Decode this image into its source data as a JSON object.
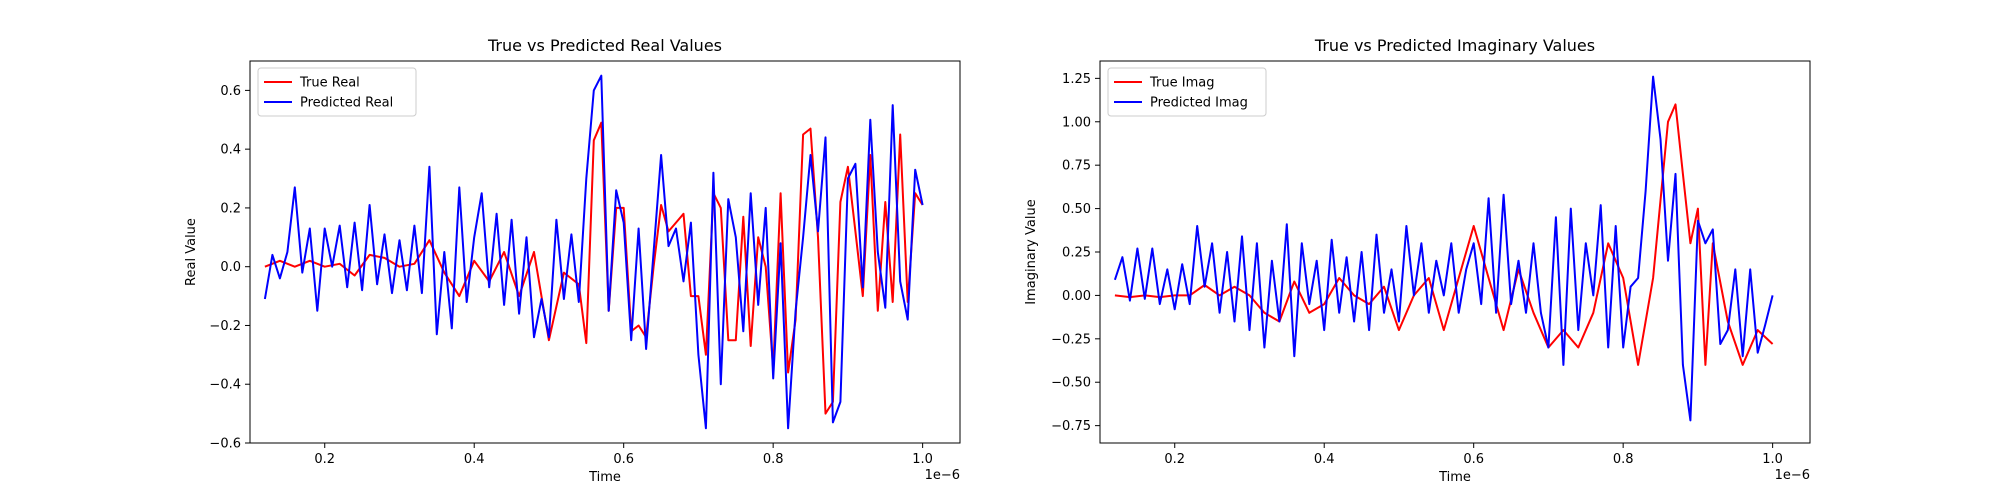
{
  "chart_data": [
    {
      "type": "line",
      "title": "True vs Predicted Real Values",
      "xlabel": "Time",
      "ylabel": "Real Value",
      "x_offset_label": "1e−6",
      "xlim": [
        0.1,
        1.05
      ],
      "ylim": [
        -0.6,
        0.7
      ],
      "x_ticks": [
        0.2,
        0.4,
        0.6,
        0.8,
        1.0
      ],
      "x_tick_labels": [
        "0.2",
        "0.4",
        "0.6",
        "0.8",
        "1.0"
      ],
      "y_ticks": [
        -0.6,
        -0.4,
        -0.2,
        0.0,
        0.2,
        0.4,
        0.6
      ],
      "y_tick_labels": [
        "−0.6",
        "−0.4",
        "−0.2",
        "0.0",
        "0.2",
        "0.4",
        "0.6"
      ],
      "grid": false,
      "legend_position": "top-left",
      "series": [
        {
          "name": "True Real",
          "color": "#ff0000",
          "x": [
            0.12,
            0.14,
            0.16,
            0.18,
            0.2,
            0.22,
            0.24,
            0.26,
            0.28,
            0.3,
            0.32,
            0.34,
            0.36,
            0.38,
            0.4,
            0.42,
            0.44,
            0.46,
            0.48,
            0.5,
            0.52,
            0.54,
            0.55,
            0.56,
            0.57,
            0.58,
            0.59,
            0.6,
            0.61,
            0.62,
            0.63,
            0.64,
            0.65,
            0.66,
            0.67,
            0.68,
            0.69,
            0.7,
            0.71,
            0.72,
            0.73,
            0.74,
            0.75,
            0.76,
            0.77,
            0.78,
            0.79,
            0.8,
            0.81,
            0.82,
            0.83,
            0.84,
            0.85,
            0.86,
            0.87,
            0.88,
            0.89,
            0.9,
            0.91,
            0.92,
            0.93,
            0.94,
            0.95,
            0.96,
            0.97,
            0.98,
            0.99,
            1.0
          ],
          "y": [
            0.0,
            0.02,
            0.0,
            0.02,
            0.0,
            0.01,
            -0.03,
            0.04,
            0.03,
            0.0,
            0.01,
            0.09,
            -0.02,
            -0.1,
            0.02,
            -0.05,
            0.05,
            -0.1,
            0.05,
            -0.25,
            -0.02,
            -0.06,
            -0.26,
            0.43,
            0.49,
            -0.15,
            0.2,
            0.2,
            -0.22,
            -0.2,
            -0.24,
            0.0,
            0.21,
            0.12,
            0.15,
            0.18,
            -0.1,
            -0.1,
            -0.3,
            0.25,
            0.2,
            -0.25,
            -0.25,
            0.17,
            -0.27,
            0.1,
            0.0,
            -0.35,
            0.25,
            -0.36,
            -0.18,
            0.45,
            0.47,
            0.1,
            -0.5,
            -0.46,
            0.22,
            0.34,
            0.12,
            -0.1,
            0.38,
            -0.15,
            0.22,
            -0.12,
            0.45,
            -0.12,
            0.25,
            0.21
          ]
        },
        {
          "name": "Predicted Real",
          "color": "#0000ff",
          "x": [
            0.12,
            0.13,
            0.14,
            0.15,
            0.16,
            0.17,
            0.18,
            0.19,
            0.2,
            0.21,
            0.22,
            0.23,
            0.24,
            0.25,
            0.26,
            0.27,
            0.28,
            0.29,
            0.3,
            0.31,
            0.32,
            0.33,
            0.34,
            0.35,
            0.36,
            0.37,
            0.38,
            0.39,
            0.4,
            0.41,
            0.42,
            0.43,
            0.44,
            0.45,
            0.46,
            0.47,
            0.48,
            0.49,
            0.5,
            0.51,
            0.52,
            0.53,
            0.54,
            0.55,
            0.56,
            0.57,
            0.58,
            0.59,
            0.6,
            0.61,
            0.62,
            0.63,
            0.64,
            0.65,
            0.66,
            0.67,
            0.68,
            0.69,
            0.7,
            0.71,
            0.72,
            0.73,
            0.74,
            0.75,
            0.76,
            0.77,
            0.78,
            0.79,
            0.8,
            0.81,
            0.82,
            0.83,
            0.84,
            0.85,
            0.86,
            0.87,
            0.88,
            0.89,
            0.9,
            0.91,
            0.92,
            0.93,
            0.94,
            0.95,
            0.96,
            0.97,
            0.98,
            0.99,
            1.0
          ],
          "y": [
            -0.11,
            0.04,
            -0.04,
            0.05,
            0.27,
            -0.02,
            0.13,
            -0.15,
            0.13,
            0.0,
            0.14,
            -0.07,
            0.15,
            -0.08,
            0.21,
            -0.06,
            0.11,
            -0.09,
            0.09,
            -0.08,
            0.14,
            -0.09,
            0.34,
            -0.23,
            0.05,
            -0.21,
            0.27,
            -0.12,
            0.1,
            0.25,
            -0.07,
            0.18,
            -0.13,
            0.16,
            -0.16,
            0.1,
            -0.24,
            -0.11,
            -0.24,
            0.16,
            -0.11,
            0.11,
            -0.12,
            0.3,
            0.6,
            0.65,
            -0.15,
            0.26,
            0.15,
            -0.25,
            0.13,
            -0.28,
            0.05,
            0.38,
            0.07,
            0.13,
            -0.05,
            0.15,
            -0.3,
            -0.55,
            0.32,
            -0.4,
            0.23,
            0.1,
            -0.22,
            0.25,
            -0.13,
            0.2,
            -0.38,
            0.08,
            -0.55,
            -0.15,
            0.1,
            0.38,
            0.12,
            0.44,
            -0.53,
            -0.46,
            0.3,
            0.35,
            -0.07,
            0.5,
            0.05,
            -0.14,
            0.55,
            -0.05,
            -0.18,
            0.33,
            0.21
          ]
        }
      ]
    },
    {
      "type": "line",
      "title": "True vs Predicted Imaginary Values",
      "xlabel": "Time",
      "ylabel": "Imaginary Value",
      "x_offset_label": "1e−6",
      "xlim": [
        0.1,
        1.05
      ],
      "ylim": [
        -0.85,
        1.35
      ],
      "x_ticks": [
        0.2,
        0.4,
        0.6,
        0.8,
        1.0
      ],
      "x_tick_labels": [
        "0.2",
        "0.4",
        "0.6",
        "0.8",
        "1.0"
      ],
      "y_ticks": [
        -0.75,
        -0.5,
        -0.25,
        0.0,
        0.25,
        0.5,
        0.75,
        1.0,
        1.25
      ],
      "y_tick_labels": [
        "−0.75",
        "−0.50",
        "−0.25",
        "0.00",
        "0.25",
        "0.50",
        "0.75",
        "1.00",
        "1.25"
      ],
      "grid": false,
      "legend_position": "top-left",
      "series": [
        {
          "name": "True Imag",
          "color": "#ff0000",
          "x": [
            0.12,
            0.14,
            0.16,
            0.18,
            0.2,
            0.22,
            0.24,
            0.26,
            0.28,
            0.3,
            0.32,
            0.34,
            0.36,
            0.38,
            0.4,
            0.42,
            0.44,
            0.46,
            0.48,
            0.5,
            0.52,
            0.54,
            0.56,
            0.58,
            0.6,
            0.62,
            0.64,
            0.66,
            0.68,
            0.7,
            0.72,
            0.74,
            0.76,
            0.78,
            0.8,
            0.82,
            0.84,
            0.86,
            0.87,
            0.88,
            0.89,
            0.9,
            0.91,
            0.92,
            0.94,
            0.96,
            0.98,
            1.0
          ],
          "y": [
            0.0,
            -0.01,
            0.0,
            -0.01,
            0.0,
            0.0,
            0.06,
            0.0,
            0.05,
            0.0,
            -0.1,
            -0.15,
            0.08,
            -0.1,
            -0.05,
            0.1,
            0.0,
            -0.05,
            0.05,
            -0.2,
            0.0,
            0.1,
            -0.2,
            0.1,
            0.4,
            0.1,
            -0.2,
            0.15,
            -0.1,
            -0.3,
            -0.2,
            -0.3,
            -0.1,
            0.3,
            0.1,
            -0.4,
            0.1,
            1.0,
            1.1,
            0.7,
            0.3,
            0.5,
            -0.4,
            0.3,
            -0.15,
            -0.4,
            -0.2,
            -0.28
          ]
        },
        {
          "name": "Predicted Imag",
          "color": "#0000ff",
          "x": [
            0.12,
            0.13,
            0.14,
            0.15,
            0.16,
            0.17,
            0.18,
            0.19,
            0.2,
            0.21,
            0.22,
            0.23,
            0.24,
            0.25,
            0.26,
            0.27,
            0.28,
            0.29,
            0.3,
            0.31,
            0.32,
            0.33,
            0.34,
            0.35,
            0.36,
            0.37,
            0.38,
            0.39,
            0.4,
            0.41,
            0.42,
            0.43,
            0.44,
            0.45,
            0.46,
            0.47,
            0.48,
            0.49,
            0.5,
            0.51,
            0.52,
            0.53,
            0.54,
            0.55,
            0.56,
            0.57,
            0.58,
            0.59,
            0.6,
            0.61,
            0.62,
            0.63,
            0.64,
            0.65,
            0.66,
            0.67,
            0.68,
            0.69,
            0.7,
            0.71,
            0.72,
            0.73,
            0.74,
            0.75,
            0.76,
            0.77,
            0.78,
            0.79,
            0.8,
            0.81,
            0.82,
            0.83,
            0.84,
            0.85,
            0.86,
            0.87,
            0.88,
            0.89,
            0.9,
            0.91,
            0.92,
            0.93,
            0.94,
            0.95,
            0.96,
            0.97,
            0.98,
            0.99,
            1.0
          ],
          "y": [
            0.09,
            0.22,
            -0.03,
            0.27,
            -0.02,
            0.27,
            -0.05,
            0.15,
            -0.08,
            0.18,
            -0.05,
            0.4,
            0.05,
            0.3,
            -0.1,
            0.25,
            -0.15,
            0.34,
            -0.2,
            0.3,
            -0.3,
            0.2,
            -0.15,
            0.41,
            -0.35,
            0.3,
            -0.05,
            0.2,
            -0.2,
            0.32,
            -0.1,
            0.22,
            -0.15,
            0.25,
            -0.2,
            0.35,
            -0.1,
            0.15,
            -0.15,
            0.4,
            0.0,
            0.3,
            -0.1,
            0.2,
            0.0,
            0.3,
            -0.1,
            0.15,
            0.3,
            -0.05,
            0.56,
            -0.1,
            0.58,
            -0.05,
            0.2,
            -0.1,
            0.3,
            -0.1,
            -0.3,
            0.45,
            -0.4,
            0.5,
            -0.2,
            0.3,
            0.0,
            0.52,
            -0.3,
            0.4,
            -0.3,
            0.05,
            0.1,
            0.6,
            1.26,
            0.9,
            0.2,
            0.7,
            -0.4,
            -0.72,
            0.43,
            0.3,
            0.38,
            -0.28,
            -0.2,
            0.15,
            -0.35,
            0.15,
            -0.33,
            -0.17,
            0.0
          ]
        }
      ]
    }
  ]
}
